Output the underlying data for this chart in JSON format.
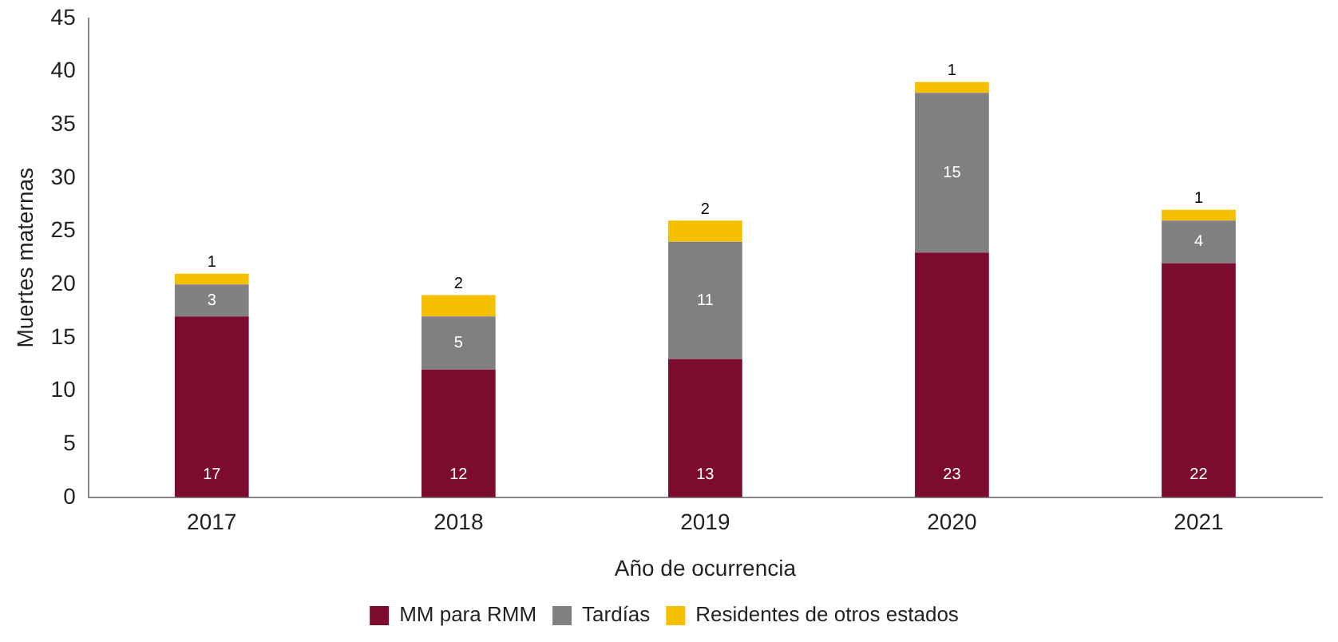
{
  "chart_data": {
    "type": "bar",
    "stacked": true,
    "xlabel": "Año de ocurrencia",
    "ylabel": "Muertes maternas",
    "categories": [
      "2017",
      "2018",
      "2019",
      "2020",
      "2021"
    ],
    "series": [
      {
        "name": "MM para RMM",
        "color": "#7b0c2e",
        "values": [
          17,
          12,
          13,
          23,
          22
        ]
      },
      {
        "name": "Tardías",
        "color": "#808080",
        "values": [
          3,
          5,
          11,
          15,
          4
        ]
      },
      {
        "name": "Residentes de otros estados",
        "color": "#f5c000",
        "values": [
          1,
          2,
          2,
          1,
          1
        ]
      }
    ],
    "ylim": [
      0,
      45
    ],
    "yticks": [
      0,
      5,
      10,
      15,
      20,
      25,
      30,
      35,
      40,
      45
    ],
    "grid": false,
    "legend": "bottom",
    "data_labels": true
  }
}
